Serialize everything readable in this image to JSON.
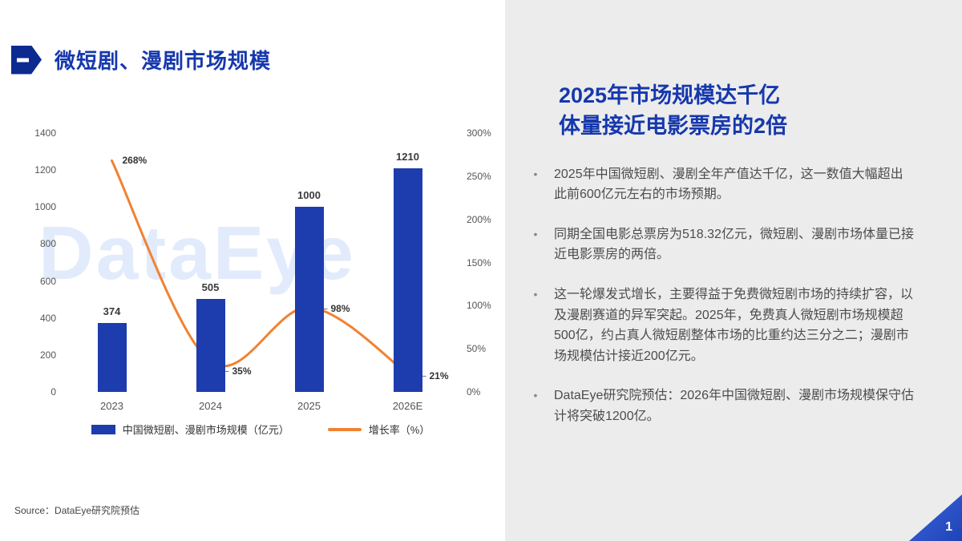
{
  "slide": {
    "title": "微短剧、漫剧市场规模",
    "watermark": "DataEye",
    "source_label": "Source：DataEye研究院预估",
    "page_number": "1"
  },
  "right_panel": {
    "heading_line1": "2025年市场规模达千亿",
    "heading_line2": "体量接近电影票房的2倍",
    "bullets": [
      "2025年中国微短剧、漫剧全年产值达千亿，这一数值大幅超出此前600亿元左右的市场预期。",
      "同期全国电影总票房为518.32亿元，微短剧、漫剧市场体量已接近电影票房的两倍。",
      "这一轮爆发式增长，主要得益于免费微短剧市场的持续扩容，以及漫剧赛道的异军突起。2025年，免费真人微短剧市场规模超500亿，约占真人微短剧整体市场的比重约达三分之二；漫剧市场规模估计接近200亿元。",
      "DataEye研究院预估：2026年中国微短剧、漫剧市场规模保守估计将突破1200亿。"
    ]
  },
  "chart_data": {
    "type": "bar",
    "subtype": "combo-bar-line",
    "title": "微短剧、漫剧市场规模",
    "categories": [
      "2023",
      "2024",
      "2025",
      "2026E"
    ],
    "series": [
      {
        "name": "中国微短剧、漫剧市场规模（亿元）",
        "kind": "bar",
        "axis": "left",
        "color": "#1d3cad",
        "values": [
          374,
          505,
          1000,
          1210
        ]
      },
      {
        "name": "增长率（%）",
        "kind": "line",
        "axis": "right",
        "color": "#f08232",
        "values": [
          268,
          35,
          98,
          21
        ]
      }
    ],
    "left_axis": {
      "min": 0,
      "max": 1400,
      "step": 200,
      "ticks": [
        "1400",
        "1200",
        "1000",
        "800",
        "600",
        "400",
        "200",
        "0"
      ]
    },
    "right_axis": {
      "min": 0,
      "max": 300,
      "step": 50,
      "ticks": [
        "300%",
        "250%",
        "200%",
        "150%",
        "100%",
        "50%",
        "0%"
      ]
    },
    "bar_value_labels": [
      "374",
      "505",
      "1000",
      "1210"
    ],
    "line_point_labels": [
      "268%",
      "35%",
      "98%",
      "21%"
    ],
    "legend_position": "bottom",
    "grid": false
  }
}
